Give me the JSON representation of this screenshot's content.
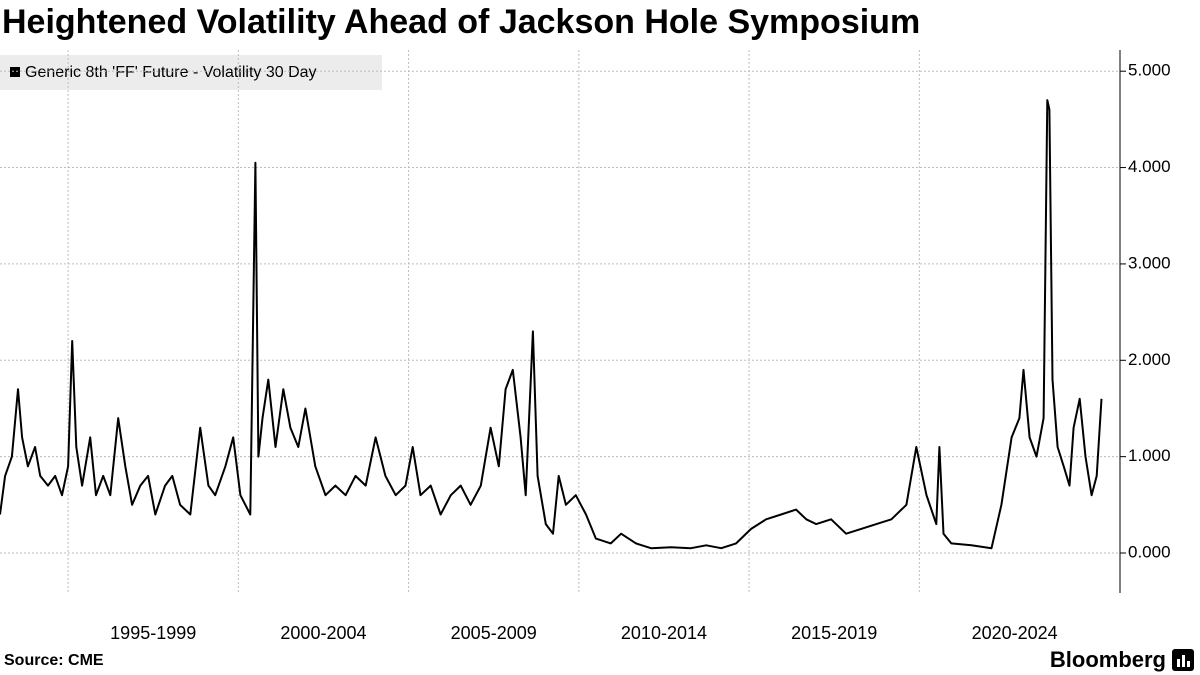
{
  "chart_data": {
    "type": "line",
    "title": "Heightened Volatility Ahead of Jackson Hole Symposium",
    "source": "Source: CME",
    "brand": "Bloomberg",
    "categories": [
      "1995-1999",
      "2000-2004",
      "2005-2009",
      "2010-2014",
      "2015-2019",
      "2020-2024"
    ],
    "xlim": [
      1993,
      2025.6
    ],
    "xticks": [
      1995,
      2000,
      2005,
      2010,
      2015,
      2020
    ],
    "ylim": [
      -0.415,
      5.22
    ],
    "yticks": [
      {
        "value": 0,
        "label": "0.000"
      },
      {
        "value": 1,
        "label": "1.000"
      },
      {
        "value": 2,
        "label": "2.000"
      },
      {
        "value": 3,
        "label": "3.000"
      },
      {
        "value": 4,
        "label": "4.000"
      },
      {
        "value": 5,
        "label": "5.000"
      }
    ],
    "grid": true,
    "series": [
      {
        "name": "Generic 8th 'FF' Future - Volatility 30 Day",
        "color": "#000000",
        "x": [
          1993,
          1993.15,
          1993.35,
          1993.53,
          1993.65,
          1993.82,
          1994.03,
          1994.18,
          1994.41,
          1994.62,
          1994.82,
          1995.0,
          1995.12,
          1995.24,
          1995.41,
          1995.65,
          1995.82,
          1996.03,
          1996.24,
          1996.47,
          1996.68,
          1996.88,
          1997.12,
          1997.35,
          1997.56,
          1997.85,
          1998.06,
          1998.29,
          1998.59,
          1998.88,
          1999.12,
          1999.32,
          1999.62,
          1999.85,
          2000.06,
          2000.35,
          2000.5,
          2000.59,
          2000.71,
          2000.88,
          2001.09,
          2001.32,
          2001.53,
          2001.76,
          2001.97,
          2002.26,
          2002.56,
          2002.85,
          2003.15,
          2003.44,
          2003.74,
          2004.03,
          2004.32,
          2004.62,
          2004.91,
          2005.12,
          2005.35,
          2005.65,
          2005.94,
          2006.24,
          2006.53,
          2006.82,
          2007.12,
          2007.41,
          2007.65,
          2007.85,
          2008.06,
          2008.29,
          2008.44,
          2008.65,
          2008.79,
          2009.03,
          2009.24,
          2009.41,
          2009.62,
          2009.91,
          2010.21,
          2010.5,
          2010.94,
          2011.24,
          2011.68,
          2012.12,
          2012.71,
          2013.29,
          2013.74,
          2014.18,
          2014.62,
          2015.06,
          2015.5,
          2015.94,
          2016.38,
          2016.68,
          2016.97,
          2017.41,
          2017.85,
          2018.29,
          2018.74,
          2019.18,
          2019.62,
          2019.91,
          2020.21,
          2020.5,
          2020.59,
          2020.71,
          2020.94,
          2021.53,
          2022.12,
          2022.41,
          2022.71,
          2022.94,
          2023.06,
          2023.24,
          2023.44,
          2023.65,
          2023.76,
          2023.82,
          2023.91,
          2024.06,
          2024.24,
          2024.41,
          2024.53,
          2024.71,
          2024.88,
          2025.06,
          2025.21,
          2025.35
        ],
        "values": [
          0.4,
          0.8,
          1.0,
          1.7,
          1.2,
          0.9,
          1.1,
          0.8,
          0.7,
          0.8,
          0.6,
          0.9,
          2.2,
          1.1,
          0.7,
          1.2,
          0.6,
          0.8,
          0.6,
          1.4,
          0.9,
          0.5,
          0.7,
          0.8,
          0.4,
          0.7,
          0.8,
          0.5,
          0.4,
          1.3,
          0.7,
          0.6,
          0.9,
          1.2,
          0.6,
          0.4,
          4.05,
          1.0,
          1.4,
          1.8,
          1.1,
          1.7,
          1.3,
          1.1,
          1.5,
          0.9,
          0.6,
          0.7,
          0.6,
          0.8,
          0.7,
          1.2,
          0.8,
          0.6,
          0.7,
          1.1,
          0.6,
          0.7,
          0.4,
          0.6,
          0.7,
          0.5,
          0.7,
          1.3,
          0.9,
          1.7,
          1.9,
          1.2,
          0.6,
          2.3,
          0.8,
          0.3,
          0.2,
          0.8,
          0.5,
          0.6,
          0.4,
          0.15,
          0.1,
          0.2,
          0.1,
          0.05,
          0.06,
          0.05,
          0.08,
          0.05,
          0.1,
          0.25,
          0.35,
          0.4,
          0.45,
          0.35,
          0.3,
          0.35,
          0.2,
          0.25,
          0.3,
          0.35,
          0.5,
          1.1,
          0.6,
          0.3,
          1.1,
          0.2,
          0.1,
          0.08,
          0.05,
          0.5,
          1.2,
          1.4,
          1.9,
          1.2,
          1.0,
          1.4,
          4.7,
          4.6,
          1.8,
          1.1,
          0.9,
          0.7,
          1.3,
          1.6,
          1.0,
          0.6,
          0.8,
          1.6
        ]
      }
    ]
  }
}
